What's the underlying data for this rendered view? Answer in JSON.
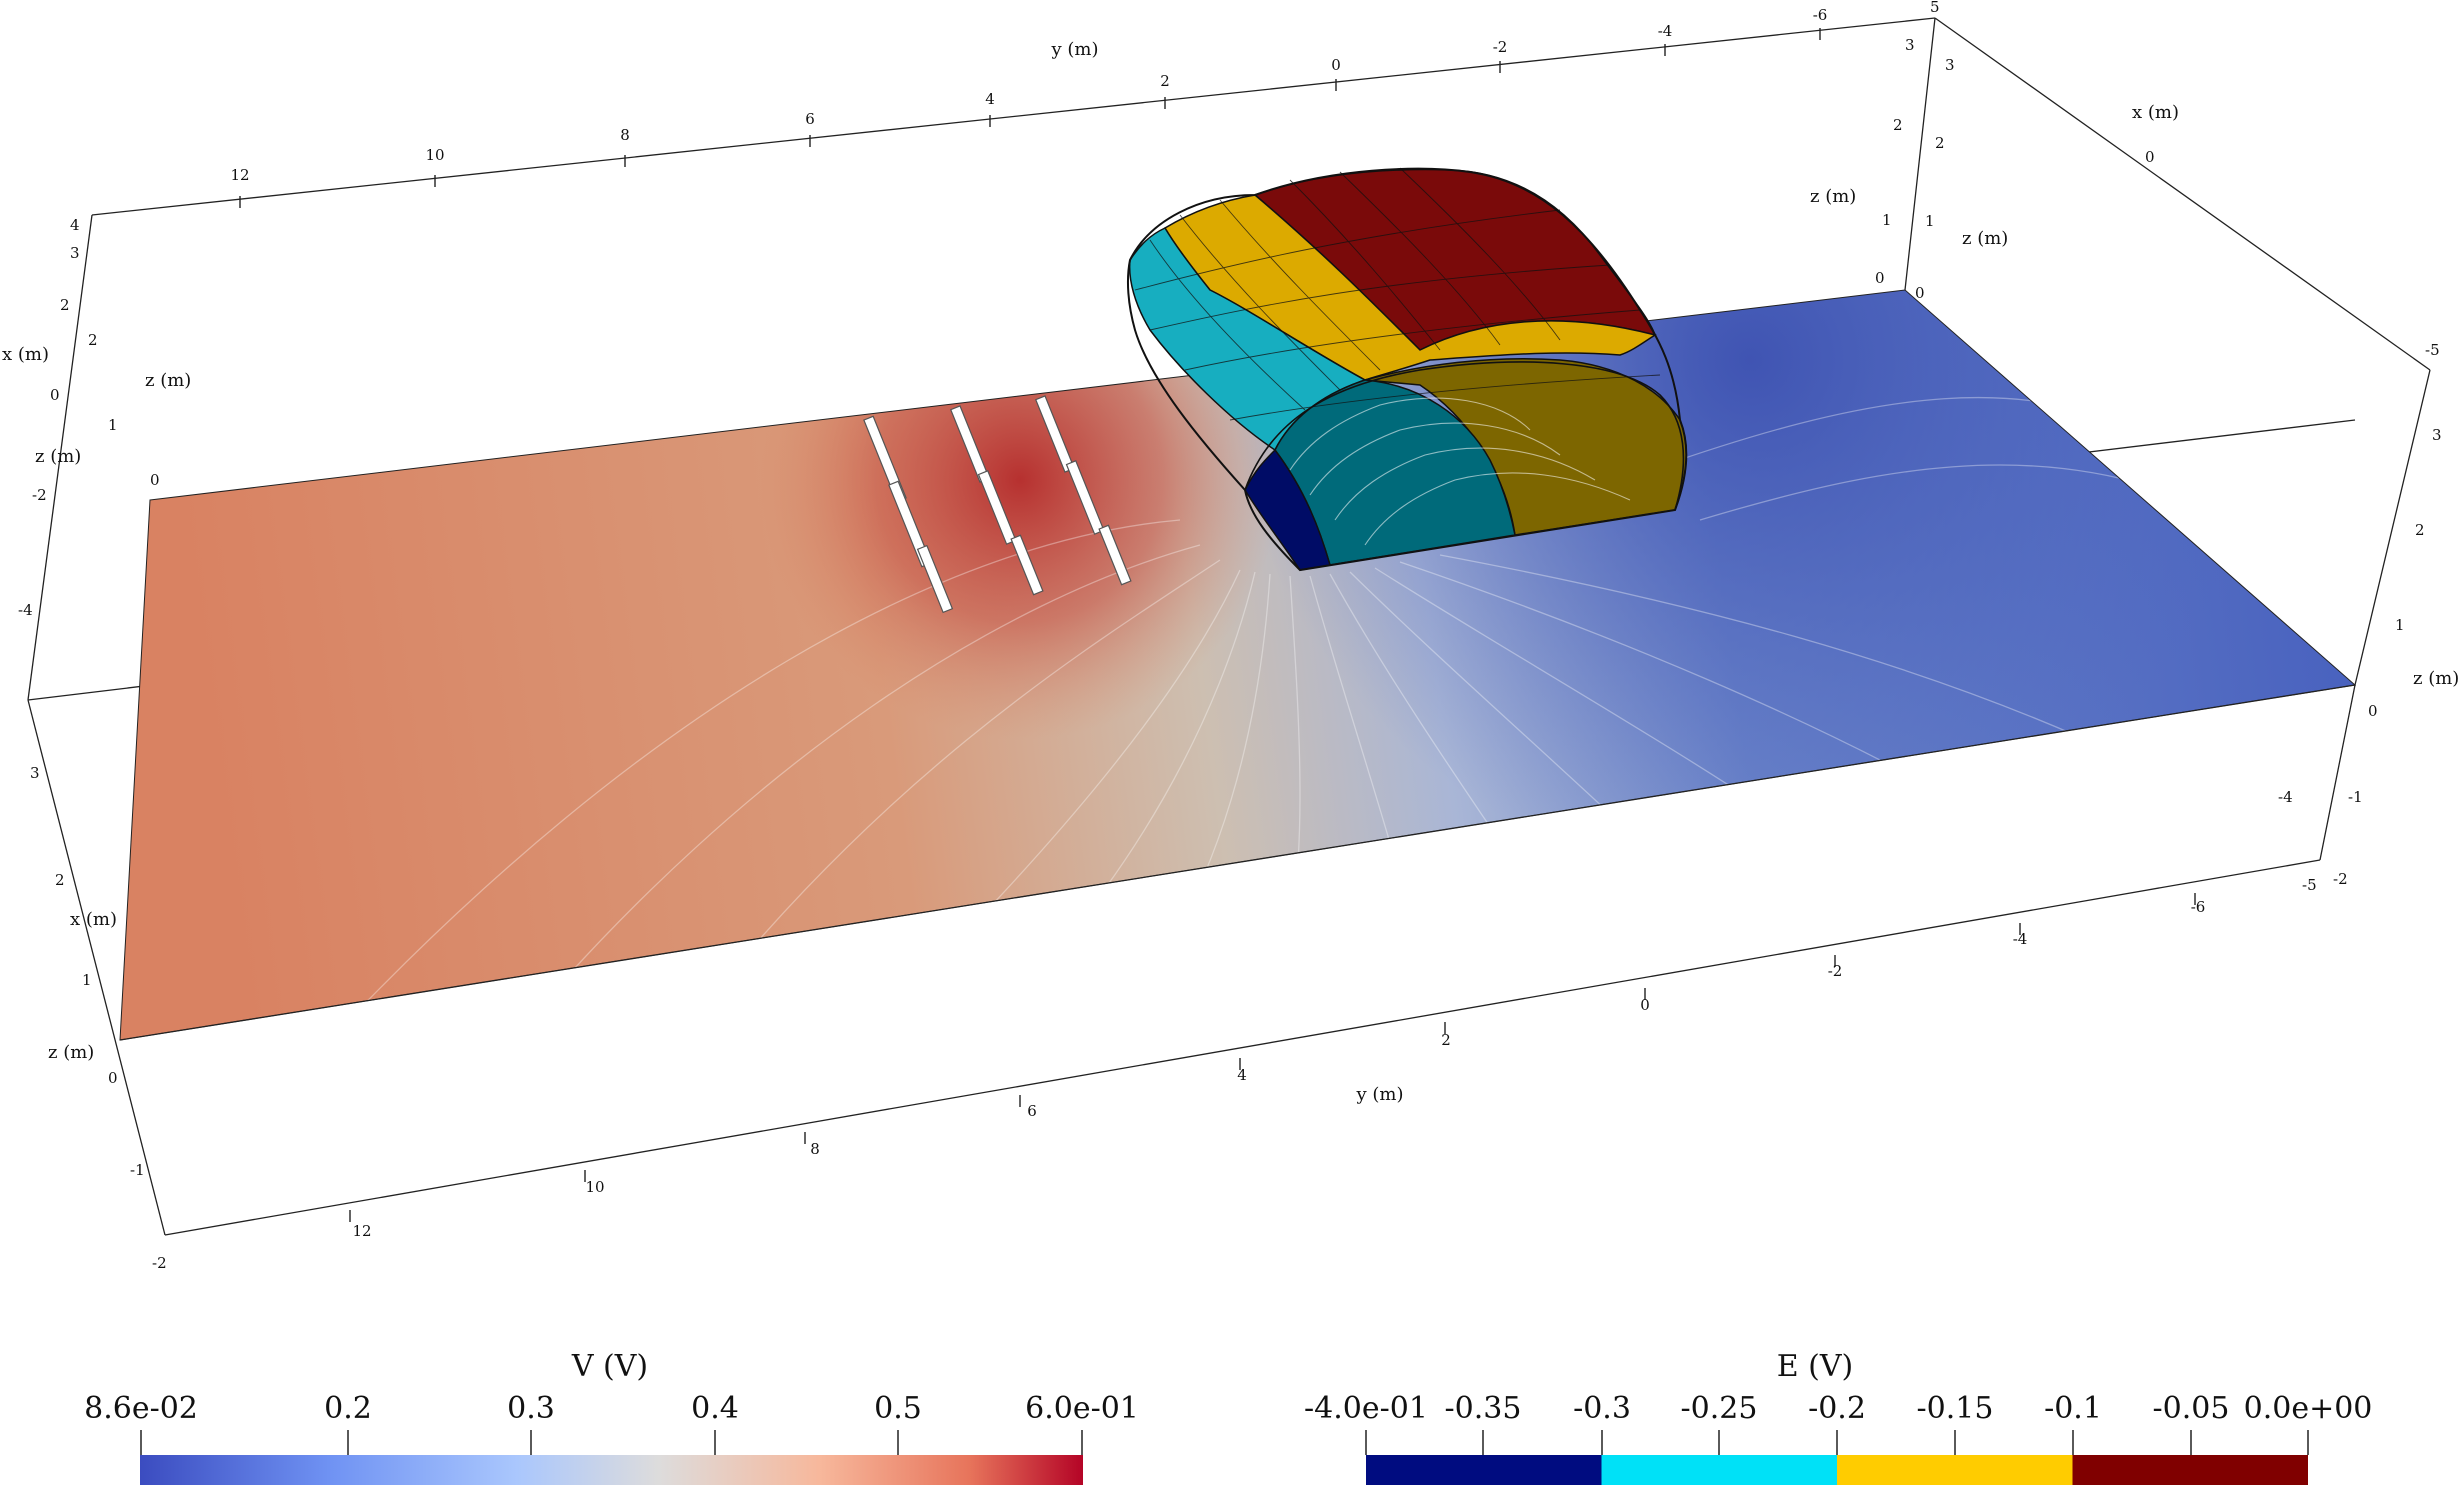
{
  "axes": {
    "x_title": "x (m)",
    "y_title": "y (m)",
    "z_title": "z (m)",
    "back_top_y_ticks": [
      "12",
      "10",
      "8",
      "6",
      "4",
      "2",
      "0",
      "-2",
      "-4",
      "-6"
    ],
    "front_bottom_y_ticks": [
      "12",
      "10",
      "8",
      "6",
      "4",
      "2",
      "0",
      "-2",
      "-4",
      "-6"
    ],
    "left_z_ticks": [
      "0",
      "1",
      "2",
      "3",
      "4"
    ],
    "left_x_ticks": [
      "2",
      "0",
      "-2",
      "-4"
    ],
    "left_front_ticks": [
      "3",
      "2",
      "1",
      "0",
      "-1",
      "-2"
    ],
    "right_back_z_ticks": [
      "0",
      "1",
      "2",
      "3",
      "5"
    ],
    "right_front_z_ticks": [
      "0",
      "1",
      "2",
      "3"
    ],
    "right_x_ticks": [
      "0",
      "-4",
      "-5"
    ],
    "right_bottom_ticks": [
      "-1",
      "-2",
      "-5"
    ]
  },
  "colorbar_v": {
    "title": "V (V)",
    "min": 0.086,
    "max": 0.6,
    "ticks": [
      "8.6e-02",
      "0.2",
      "0.3",
      "0.4",
      "0.5",
      "6.0e-01"
    ],
    "colors": [
      "#3b4cc0",
      "#6f92f3",
      "#aac7fd",
      "#dddcdc",
      "#f7b89c",
      "#e7745b",
      "#b40426"
    ]
  },
  "colorbar_e": {
    "title": "E (V)",
    "min": -0.4,
    "max": 0.0,
    "ticks": [
      "-4.0e-01",
      "-0.35",
      "-0.3",
      "-0.25",
      "-0.2",
      "-0.15",
      "-0.1",
      "-0.05",
      "0.0e+00"
    ],
    "bands": [
      {
        "from": -0.4,
        "to": -0.3,
        "color": "#000c80"
      },
      {
        "from": -0.3,
        "to": -0.2,
        "color": "#00e1f7"
      },
      {
        "from": -0.2,
        "to": -0.1,
        "color": "#ffcc00"
      },
      {
        "from": -0.1,
        "to": 0.0,
        "color": "#800000"
      }
    ]
  },
  "colors": {
    "plane_warm": "#d98060",
    "plane_mid": "#cdbfb2",
    "plane_cool": "#3d56b5",
    "electrode_zone": "#b83030",
    "outline": "#111111"
  }
}
